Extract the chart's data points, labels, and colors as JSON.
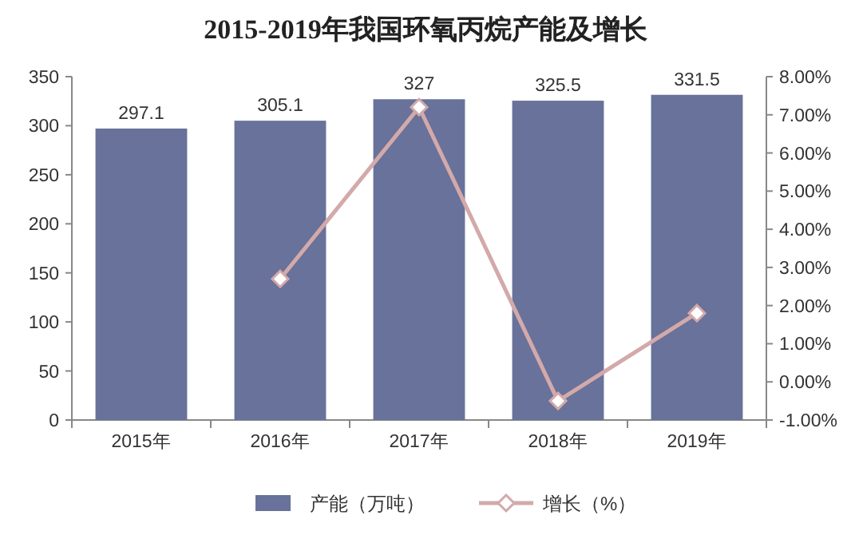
{
  "chart_data": {
    "type": "bar",
    "title": "2015-2019年我国环氧丙烷产能及增长",
    "categories": [
      "2015年",
      "2016年",
      "2017年",
      "2018年",
      "2019年"
    ],
    "series": [
      {
        "name": "产能（万吨）",
        "color": "#68729a",
        "values": [
          297.1,
          305.1,
          327,
          325.5,
          331.5
        ],
        "value_labels": [
          "297.1",
          "305.1",
          "327",
          "325.5",
          "331.5"
        ]
      },
      {
        "name": "增长（%）",
        "type": "line",
        "axis": "y2",
        "color": "#d3a9aa",
        "marker": "diamond",
        "values": [
          null,
          2.7,
          7.2,
          -0.5,
          1.8
        ]
      }
    ],
    "ylim": [
      0,
      350
    ],
    "yticks": [
      0,
      50,
      100,
      150,
      200,
      250,
      300,
      350
    ],
    "y2lim": [
      -1,
      8
    ],
    "y2ticks": [
      {
        "value": -1,
        "label": "-1.00%"
      },
      {
        "value": 0,
        "label": "0.00%"
      },
      {
        "value": 1,
        "label": "1.00%"
      },
      {
        "value": 2,
        "label": "2.00%"
      },
      {
        "value": 3,
        "label": "3.00%"
      },
      {
        "value": 4,
        "label": "4.00%"
      },
      {
        "value": 5,
        "label": "5.00%"
      },
      {
        "value": 6,
        "label": "6.00%"
      },
      {
        "value": 7,
        "label": "7.00%"
      },
      {
        "value": 8,
        "label": "8.00%"
      }
    ],
    "legend": "bottom",
    "grid": false
  }
}
